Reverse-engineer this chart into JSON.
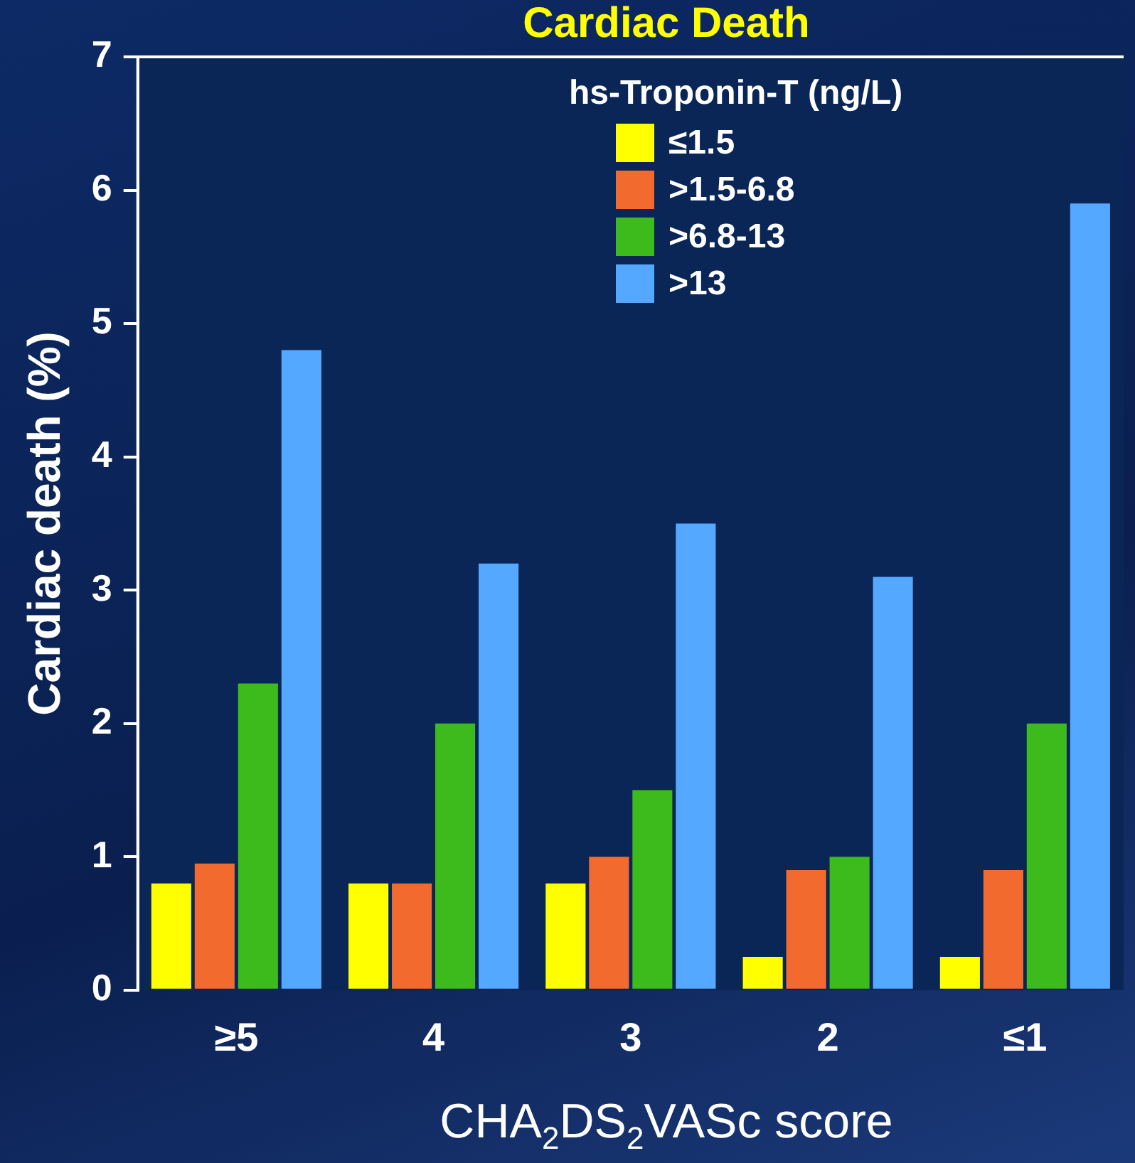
{
  "chart_data": {
    "type": "bar",
    "title": "Cardiac Death",
    "ylabel": "Cardiac death (%)",
    "xlabel": "CHA$_{2}$DS$_{2}$VASc score",
    "legend_title": "hs-Troponin-T (ng/L)",
    "categories": [
      "≥5",
      "4",
      "3",
      "2",
      "≤1"
    ],
    "series": [
      {
        "name": "≤1.5",
        "color": "#ffff00",
        "values": [
          0.8,
          0.8,
          0.8,
          0.25,
          0.25
        ]
      },
      {
        "name": ">1.5-6.8",
        "color": "#f26a2e",
        "values": [
          0.95,
          0.8,
          1.0,
          0.9,
          0.9
        ]
      },
      {
        "name": ">6.8-13",
        "color": "#3dba1c",
        "values": [
          2.3,
          2.0,
          1.5,
          1.0,
          2.0
        ]
      },
      {
        "name": ">13",
        "color": "#55a8ff",
        "values": [
          4.8,
          3.2,
          3.5,
          3.1,
          5.9
        ]
      }
    ],
    "ylim": [
      0,
      7
    ],
    "yticks": [
      0,
      1,
      2,
      3,
      4,
      5,
      6,
      7
    ],
    "grid": false,
    "legend": "top right"
  }
}
